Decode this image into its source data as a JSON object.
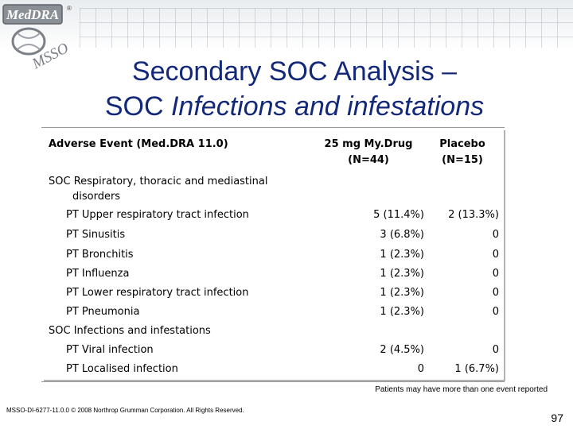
{
  "logo": {
    "text_top": "MedDRA",
    "text_bottom": "MSSO",
    "registered": "®"
  },
  "title": {
    "line1": "Secondary SOC Analysis –",
    "line2_prefix": "SOC ",
    "line2_italic": "Infections and infestations"
  },
  "table": {
    "header": {
      "event": "Adverse Event (Med.DRA 11.0)",
      "col1_line1": "25 mg My.Drug",
      "col1_line2": "(N=44)",
      "col2_line1": "Placebo",
      "col2_line2": "(N=15)"
    },
    "groups": [
      {
        "soc_line1": "SOC Respiratory, thoracic and mediastinal",
        "soc_line2": "disorders",
        "rows": [
          {
            "pt": "PT Upper respiratory tract infection",
            "drug": "5 (11.4%)",
            "placebo": "2 (13.3%)"
          },
          {
            "pt": "PT Sinusitis",
            "drug": "3 (6.8%)",
            "placebo": "0"
          },
          {
            "pt": "PT Bronchitis",
            "drug": "1 (2.3%)",
            "placebo": "0"
          },
          {
            "pt": "PT Influenza",
            "drug": "1 (2.3%)",
            "placebo": "0"
          },
          {
            "pt": "PT Lower respiratory tract infection",
            "drug": "1 (2.3%)",
            "placebo": "0"
          },
          {
            "pt": "PT Pneumonia",
            "drug": "1 (2.3%)",
            "placebo": "0"
          }
        ]
      },
      {
        "soc_line1": "SOC Infections and infestations",
        "rows": [
          {
            "pt": "PT Viral infection",
            "drug": "2 (4.5%)",
            "placebo": "0"
          },
          {
            "pt": "PT Localised infection",
            "drug": "0",
            "placebo": "1 (6.7%)"
          }
        ]
      }
    ]
  },
  "footnote": "Patients may have more than one event reported",
  "copyright": "MSSO-DI-6277-11.0.0 © 2008 Northrop Grumman Corporation. All Rights Reserved.",
  "page_number": "97",
  "colors": {
    "title": "#14287a",
    "logo_gray": "#7b7f86"
  }
}
